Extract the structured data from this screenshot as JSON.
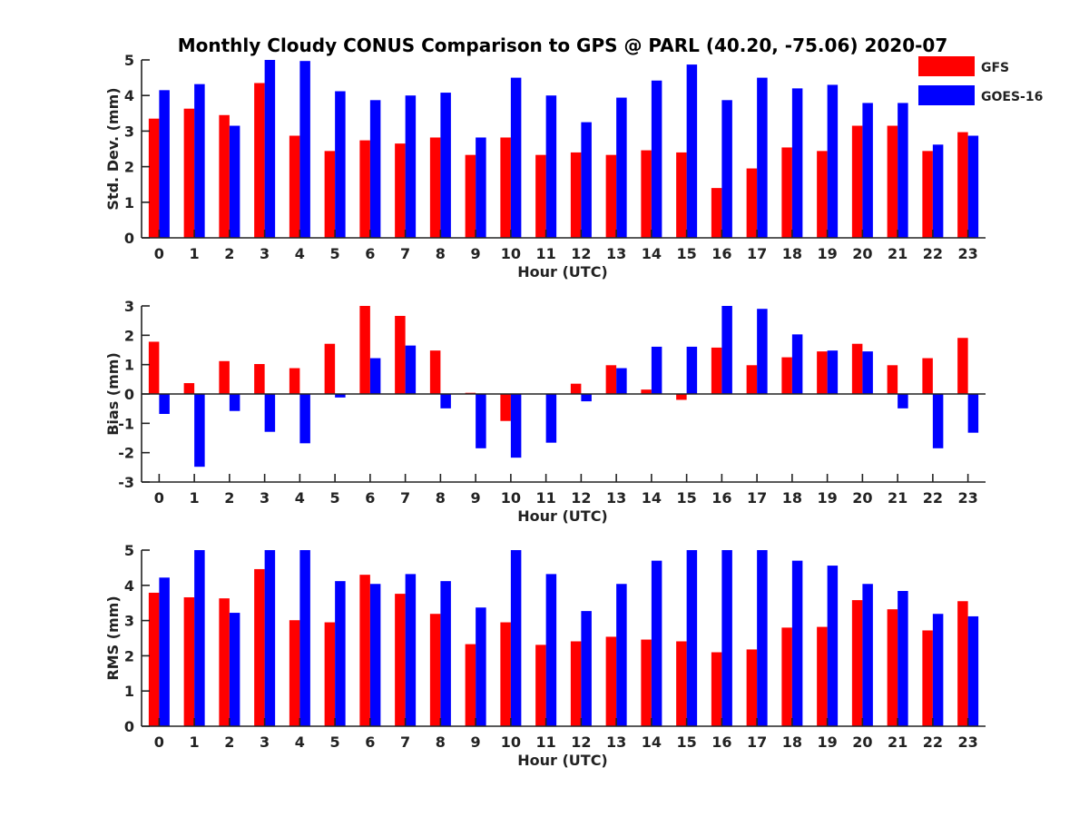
{
  "chart_data": {
    "title": "Monthly Cloudy CONUS Comparison to GPS @ PARL (40.20, -75.06) 2020-07",
    "categories": [
      "0",
      "1",
      "2",
      "3",
      "4",
      "5",
      "6",
      "7",
      "8",
      "9",
      "10",
      "11",
      "12",
      "13",
      "14",
      "15",
      "16",
      "17",
      "18",
      "19",
      "20",
      "21",
      "22",
      "23"
    ],
    "legend": {
      "position": "top-right",
      "entries": [
        "GFS",
        "GOES-16"
      ]
    },
    "colors": {
      "GFS": "#ff0000",
      "GOES-16": "#0000ff"
    },
    "panels": [
      {
        "type": "bar",
        "xlabel": "Hour (UTC)",
        "ylabel": "Std. Dev. (mm)",
        "ylim": [
          0,
          5
        ],
        "yticks": [
          0,
          1,
          2,
          3,
          4,
          5
        ],
        "series": [
          {
            "name": "GFS",
            "values": [
              3.35,
              3.63,
              3.45,
              4.35,
              2.87,
              2.44,
              2.74,
              2.65,
              2.82,
              2.33,
              2.82,
              2.33,
              2.4,
              2.33,
              2.46,
              2.4,
              1.4,
              1.95,
              2.54,
              2.44,
              3.15,
              3.15,
              2.44,
              2.97
            ]
          },
          {
            "name": "GOES-16",
            "values": [
              4.15,
              4.32,
              3.15,
              5.0,
              4.97,
              4.12,
              3.87,
              4.0,
              4.08,
              2.82,
              4.5,
              4.0,
              3.25,
              3.94,
              4.42,
              4.87,
              3.87,
              4.5,
              4.2,
              4.3,
              3.79,
              3.79,
              2.62,
              2.87
            ]
          }
        ]
      },
      {
        "type": "bar",
        "xlabel": "Hour (UTC)",
        "ylabel": "Bias (mm)",
        "ylim": [
          -3,
          3
        ],
        "yticks": [
          -3,
          -2,
          -1,
          0,
          1,
          2,
          3
        ],
        "series": [
          {
            "name": "GFS",
            "values": [
              1.78,
              0.37,
              1.12,
              1.02,
              0.88,
              1.71,
              3.0,
              2.66,
              1.48,
              0.04,
              -0.92,
              0.0,
              0.35,
              0.98,
              0.15,
              -0.2,
              1.58,
              0.98,
              1.25,
              1.45,
              1.71,
              0.98,
              1.22,
              1.91
            ]
          },
          {
            "name": "GOES-16",
            "values": [
              -0.68,
              -2.48,
              -0.58,
              -1.29,
              -1.68,
              -0.12,
              1.22,
              1.65,
              -0.49,
              -1.85,
              -2.17,
              -1.66,
              -0.25,
              0.88,
              1.61,
              1.61,
              3.0,
              2.9,
              2.03,
              1.48,
              1.45,
              -0.49,
              -1.85,
              -1.32
            ]
          }
        ]
      },
      {
        "type": "bar",
        "xlabel": "Hour (UTC)",
        "ylabel": "RMS (mm)",
        "ylim": [
          0,
          5
        ],
        "yticks": [
          0,
          1,
          2,
          3,
          4,
          5
        ],
        "series": [
          {
            "name": "GFS",
            "values": [
              3.79,
              3.66,
              3.63,
              4.46,
              3.01,
              2.95,
              4.3,
              3.76,
              3.19,
              2.33,
              2.95,
              2.31,
              2.41,
              2.54,
              2.46,
              2.41,
              2.1,
              2.18,
              2.8,
              2.82,
              3.58,
              3.32,
              2.72,
              3.55
            ]
          },
          {
            "name": "GOES-16",
            "values": [
              4.22,
              5.0,
              3.22,
              5.0,
              5.0,
              4.12,
              4.04,
              4.32,
              4.12,
              3.37,
              5.0,
              4.32,
              3.27,
              4.04,
              4.7,
              5.0,
              5.0,
              5.0,
              4.7,
              4.56,
              4.04,
              3.84,
              3.19,
              3.12
            ]
          }
        ]
      }
    ]
  }
}
